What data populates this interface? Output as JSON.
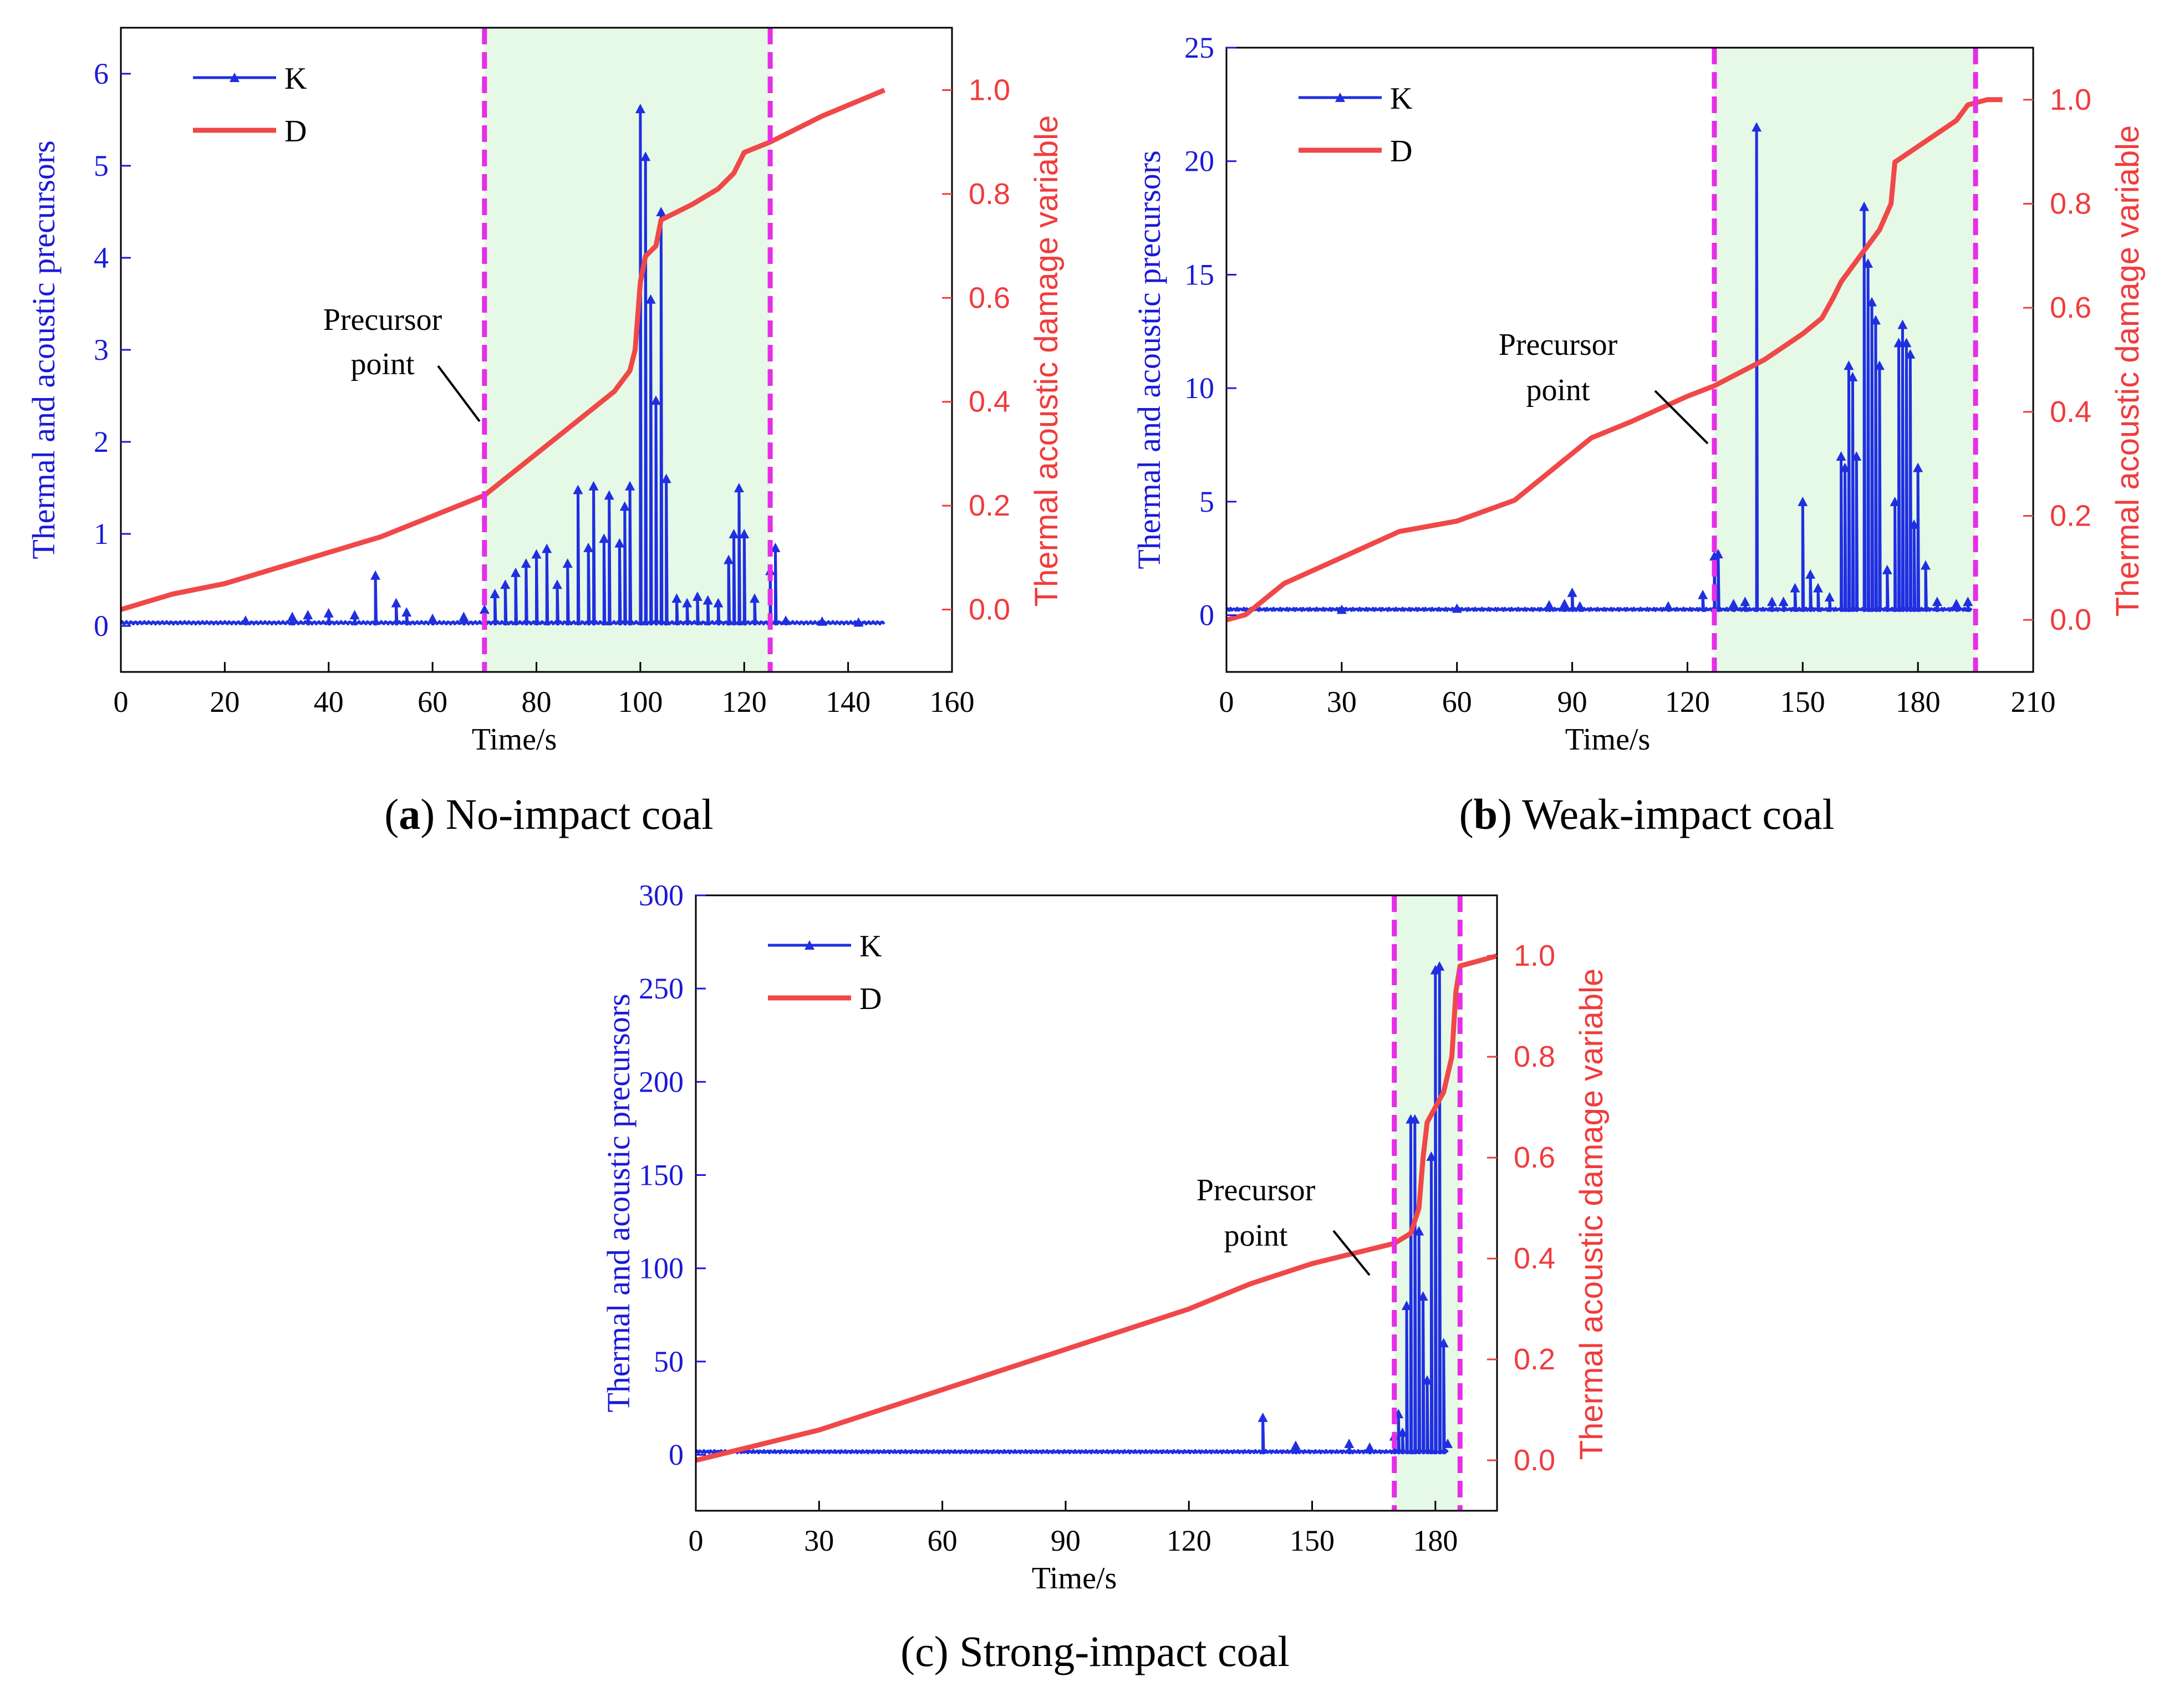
{
  "colors": {
    "k_series": "#1f2fe0",
    "d_series": "#f04848",
    "left_axis": "#1a1ad8",
    "right_axis": "#f03c3c",
    "marker_lines": "#e62ee6",
    "shade": "#e6f8e6",
    "frame": "#000000"
  },
  "chart_data": [
    {
      "type": "line",
      "panel_letter": "a",
      "caption": "No-impact coal",
      "xlabel": "Time/s",
      "ylabel_left": "Thermal and acoustic precursors",
      "ylabel_right": "Thermal acoustic damage variable",
      "xlim": [
        0,
        160
      ],
      "xticks": [
        0,
        20,
        40,
        60,
        80,
        100,
        120,
        140,
        160
      ],
      "ylim_left": [
        -0.5,
        6.5
      ],
      "yticks_left": [
        0,
        1,
        2,
        3,
        4,
        5,
        6
      ],
      "ylim_right": [
        -0.12,
        1.12
      ],
      "yticks_right": [
        "0.0",
        "0.2",
        "0.4",
        "0.6",
        "0.8",
        "1.0"
      ],
      "shaded_interval": [
        70,
        125
      ],
      "annotation": {
        "lines": [
          "Precursor",
          "point"
        ],
        "x": 70,
        "y_right": 0.22
      },
      "legend": {
        "position": "top-left",
        "entries": [
          "K",
          "D"
        ]
      },
      "x_end": 147,
      "K_baseline": 0.02,
      "K_spikes": [
        [
          24,
          0.06
        ],
        [
          33,
          0.1
        ],
        [
          36,
          0.12
        ],
        [
          40,
          0.14
        ],
        [
          45,
          0.12
        ],
        [
          49,
          0.55
        ],
        [
          53,
          0.25
        ],
        [
          55,
          0.15
        ],
        [
          60,
          0.08
        ],
        [
          66,
          0.1
        ],
        [
          70,
          0.18
        ],
        [
          72,
          0.35
        ],
        [
          74,
          0.45
        ],
        [
          76,
          0.58
        ],
        [
          78,
          0.68
        ],
        [
          80,
          0.78
        ],
        [
          82,
          0.84
        ],
        [
          84,
          0.45
        ],
        [
          86,
          0.68
        ],
        [
          88,
          1.48
        ],
        [
          90,
          0.85
        ],
        [
          91,
          1.52
        ],
        [
          93,
          0.95
        ],
        [
          94,
          1.42
        ],
        [
          96,
          0.9
        ],
        [
          97,
          1.3
        ],
        [
          98,
          1.52
        ],
        [
          100,
          5.62
        ],
        [
          101,
          5.1
        ],
        [
          102,
          3.55
        ],
        [
          103,
          2.45
        ],
        [
          104,
          4.5
        ],
        [
          105,
          1.6
        ],
        [
          107,
          0.3
        ],
        [
          109,
          0.25
        ],
        [
          111,
          0.32
        ],
        [
          113,
          0.28
        ],
        [
          115,
          0.25
        ],
        [
          117,
          0.72
        ],
        [
          118,
          1.0
        ],
        [
          119,
          1.5
        ],
        [
          120,
          1.0
        ],
        [
          122,
          0.3
        ],
        [
          125,
          0.6
        ],
        [
          126,
          0.85
        ],
        [
          128,
          0.06
        ],
        [
          135,
          0.05
        ],
        [
          142,
          0.04
        ]
      ],
      "D_points": [
        [
          0,
          0
        ],
        [
          10,
          0.03
        ],
        [
          20,
          0.05
        ],
        [
          30,
          0.08
        ],
        [
          40,
          0.11
        ],
        [
          50,
          0.14
        ],
        [
          60,
          0.18
        ],
        [
          65,
          0.2
        ],
        [
          70,
          0.22
        ],
        [
          80,
          0.3
        ],
        [
          90,
          0.38
        ],
        [
          95,
          0.42
        ],
        [
          98,
          0.46
        ],
        [
          99,
          0.5
        ],
        [
          100,
          0.63
        ],
        [
          101,
          0.68
        ],
        [
          103,
          0.7
        ],
        [
          104,
          0.75
        ],
        [
          110,
          0.78
        ],
        [
          115,
          0.81
        ],
        [
          118,
          0.84
        ],
        [
          120,
          0.88
        ],
        [
          125,
          0.9
        ],
        [
          135,
          0.95
        ],
        [
          147,
          1.0
        ]
      ]
    },
    {
      "type": "line",
      "panel_letter": "b",
      "caption": "Weak-impact coal",
      "xlabel": "Time/s",
      "ylabel_left": "Thermal and acoustic precursors",
      "ylabel_right": "Thermal acoustic damage variable",
      "xlim": [
        0,
        210
      ],
      "xticks": [
        0,
        30,
        60,
        90,
        120,
        150,
        180,
        210
      ],
      "ylim_left": [
        -2.5,
        25
      ],
      "yticks_left": [
        0,
        5,
        10,
        15,
        20,
        25
      ],
      "ylim_right": [
        -0.1,
        1.1
      ],
      "yticks_right": [
        "0.0",
        "0.2",
        "0.4",
        "0.6",
        "0.8",
        "1.0"
      ],
      "shaded_interval": [
        127,
        195
      ],
      "annotation": {
        "lines": [
          "Precursor",
          "point"
        ],
        "x": 127,
        "y_right": 0.45
      },
      "legend": {
        "position": "top-left",
        "entries": [
          "K",
          "D"
        ]
      },
      "x_end": 194,
      "K_baseline": 0.2,
      "K_spikes": [
        [
          30,
          0.25
        ],
        [
          60,
          0.3
        ],
        [
          84,
          0.45
        ],
        [
          88,
          0.5
        ],
        [
          90,
          1.0
        ],
        [
          92,
          0.4
        ],
        [
          115,
          0.4
        ],
        [
          124,
          0.9
        ],
        [
          127,
          2.6
        ],
        [
          128,
          2.7
        ],
        [
          132,
          0.5
        ],
        [
          135,
          0.6
        ],
        [
          138,
          21.5
        ],
        [
          142,
          0.6
        ],
        [
          145,
          0.6
        ],
        [
          148,
          1.2
        ],
        [
          150,
          5.0
        ],
        [
          152,
          1.8
        ],
        [
          154,
          1.2
        ],
        [
          157,
          0.8
        ],
        [
          160,
          7.0
        ],
        [
          161,
          6.5
        ],
        [
          162,
          11.0
        ],
        [
          163,
          10.5
        ],
        [
          164,
          7.0
        ],
        [
          166,
          18.0
        ],
        [
          167,
          15.5
        ],
        [
          168,
          13.8
        ],
        [
          169,
          13.0
        ],
        [
          170,
          11.0
        ],
        [
          172,
          2.0
        ],
        [
          174,
          5.0
        ],
        [
          175,
          12.0
        ],
        [
          176,
          12.8
        ],
        [
          177,
          12.0
        ],
        [
          178,
          11.5
        ],
        [
          179,
          4.0
        ],
        [
          180,
          6.5
        ],
        [
          182,
          2.2
        ],
        [
          185,
          0.6
        ],
        [
          190,
          0.5
        ],
        [
          193,
          0.6
        ]
      ],
      "D_points": [
        [
          0,
          0.0
        ],
        [
          5,
          0.01
        ],
        [
          10,
          0.04
        ],
        [
          15,
          0.07
        ],
        [
          30,
          0.12
        ],
        [
          45,
          0.17
        ],
        [
          60,
          0.19
        ],
        [
          75,
          0.23
        ],
        [
          85,
          0.29
        ],
        [
          95,
          0.35
        ],
        [
          105,
          0.38
        ],
        [
          120,
          0.43
        ],
        [
          127,
          0.45
        ],
        [
          140,
          0.5
        ],
        [
          150,
          0.55
        ],
        [
          155,
          0.58
        ],
        [
          158,
          0.62
        ],
        [
          160,
          0.65
        ],
        [
          163,
          0.68
        ],
        [
          165,
          0.7
        ],
        [
          170,
          0.75
        ],
        [
          173,
          0.8
        ],
        [
          174,
          0.88
        ],
        [
          180,
          0.91
        ],
        [
          186,
          0.94
        ],
        [
          190,
          0.96
        ],
        [
          193,
          0.99
        ],
        [
          198,
          1.0
        ],
        [
          202,
          1.0
        ]
      ]
    },
    {
      "type": "line",
      "panel_letter": "c",
      "caption": "Strong-impact coal",
      "xlabel": "Time/s",
      "ylabel_left": "Thermal and acoustic precursors",
      "ylabel_right": "Thermal acoustic damage variable",
      "xlim": [
        0,
        195
      ],
      "xticks": [
        0,
        30,
        60,
        90,
        120,
        150,
        180
      ],
      "ylim_left": [
        -30,
        300
      ],
      "yticks_left": [
        0,
        50,
        100,
        150,
        200,
        250,
        300
      ],
      "ylim_right": [
        -0.1,
        1.12
      ],
      "yticks_right": [
        "0.0",
        "0.2",
        "0.4",
        "0.6",
        "0.8",
        "1.0"
      ],
      "shaded_interval": [
        170,
        186
      ],
      "annotation": {
        "lines": [
          "Precursor",
          "point"
        ],
        "x": 170,
        "y_right": 0.42
      },
      "legend": {
        "position": "top-left",
        "entries": [
          "K",
          "D"
        ]
      },
      "x_end": 183,
      "K_baseline": 1.0,
      "K_spikes": [
        [
          138,
          20.0
        ],
        [
          146,
          5.0
        ],
        [
          159,
          6.0
        ],
        [
          164,
          4.0
        ],
        [
          170,
          10.0
        ],
        [
          171,
          22.0
        ],
        [
          172,
          12.0
        ],
        [
          173,
          80.0
        ],
        [
          174,
          180.0
        ],
        [
          175,
          180.0
        ],
        [
          176,
          120.0
        ],
        [
          177,
          85.0
        ],
        [
          178,
          40.0
        ],
        [
          179,
          160.0
        ],
        [
          180,
          260.0
        ],
        [
          181,
          262.0
        ],
        [
          182,
          60.0
        ],
        [
          183,
          6.0
        ]
      ],
      "D_points": [
        [
          0,
          0.0
        ],
        [
          15,
          0.03
        ],
        [
          30,
          0.06
        ],
        [
          45,
          0.1
        ],
        [
          60,
          0.14
        ],
        [
          75,
          0.18
        ],
        [
          90,
          0.22
        ],
        [
          105,
          0.26
        ],
        [
          120,
          0.3
        ],
        [
          135,
          0.35
        ],
        [
          150,
          0.39
        ],
        [
          165,
          0.42
        ],
        [
          170,
          0.43
        ],
        [
          174,
          0.45
        ],
        [
          176,
          0.5
        ],
        [
          177,
          0.6
        ],
        [
          178,
          0.67
        ],
        [
          180,
          0.7
        ],
        [
          182,
          0.73
        ],
        [
          184,
          0.8
        ],
        [
          185,
          0.93
        ],
        [
          186,
          0.98
        ],
        [
          195,
          1.0
        ]
      ]
    }
  ]
}
